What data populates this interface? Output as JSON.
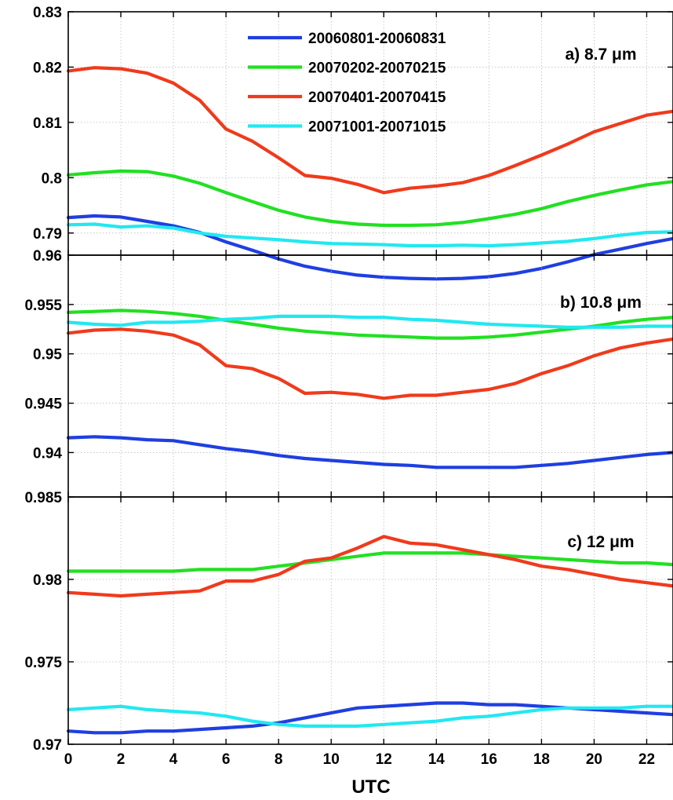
{
  "chart_data": {
    "type": "line",
    "xlabel": "UTC",
    "xlim": [
      0,
      23
    ],
    "xticks": [
      0,
      2,
      4,
      6,
      8,
      10,
      12,
      14,
      16,
      18,
      20,
      22
    ],
    "x": [
      0,
      1,
      2,
      3,
      4,
      5,
      6,
      7,
      8,
      9,
      10,
      11,
      12,
      13,
      14,
      15,
      16,
      17,
      18,
      19,
      20,
      21,
      22,
      23
    ],
    "grid": true,
    "legend": {
      "placement": "top-right (inside panel a)",
      "entries": [
        {
          "name": "20060801-20060831",
          "color": "#1f3fe0"
        },
        {
          "name": "20070202-20070215",
          "color": "#22e022"
        },
        {
          "name": "20070401-20070415",
          "color": "#f03a1c"
        },
        {
          "name": "20071001-20071015",
          "color": "#22e8f0"
        }
      ]
    },
    "panels": [
      {
        "label": "a) 8.7 μm",
        "ylim": [
          0.786,
          0.83
        ],
        "yticks": [
          0.79,
          0.8,
          0.81,
          0.82,
          0.83
        ],
        "ytick_labels": [
          "0.79",
          "0.8",
          "0.81",
          "0.82",
          "0.83"
        ],
        "series": [
          {
            "name": "20060801-20060831",
            "values": [
              0.7928,
              0.7931,
              0.7929,
              0.7921,
              0.7913,
              0.7901,
              0.7884,
              0.7869,
              0.7853,
              0.784,
              0.7831,
              0.7824,
              0.782,
              0.7818,
              0.7817,
              0.7818,
              0.7821,
              0.7827,
              0.7836,
              0.7848,
              0.7861,
              0.7871,
              0.7881,
              0.789
            ]
          },
          {
            "name": "20070202-20070215",
            "values": [
              0.8005,
              0.8009,
              0.8012,
              0.8011,
              0.8003,
              0.799,
              0.7973,
              0.7957,
              0.7941,
              0.7929,
              0.7921,
              0.7916,
              0.7914,
              0.7914,
              0.7915,
              0.7919,
              0.7926,
              0.7934,
              0.7944,
              0.7957,
              0.7968,
              0.7978,
              0.7987,
              0.7993
            ]
          },
          {
            "name": "20070401-20070415",
            "values": [
              0.8193,
              0.8199,
              0.8197,
              0.8189,
              0.8171,
              0.814,
              0.8088,
              0.8066,
              0.8036,
              0.8004,
              0.7999,
              0.7988,
              0.7973,
              0.7981,
              0.7985,
              0.7991,
              0.8004,
              0.8022,
              0.8041,
              0.8061,
              0.8083,
              0.8098,
              0.8113,
              0.812
            ]
          },
          {
            "name": "20071001-20071015",
            "values": [
              0.7915,
              0.7916,
              0.7911,
              0.7913,
              0.7909,
              0.79,
              0.7894,
              0.7891,
              0.7888,
              0.7884,
              0.7881,
              0.788,
              0.7879,
              0.7877,
              0.7877,
              0.7878,
              0.7877,
              0.7879,
              0.7882,
              0.7885,
              0.789,
              0.7896,
              0.7901,
              0.7902
            ]
          }
        ]
      },
      {
        "label": "b) 10.8 μm",
        "ylim": [
          0.9355,
          0.96
        ],
        "yticks": [
          0.94,
          0.945,
          0.95,
          0.955,
          0.96
        ],
        "ytick_labels": [
          "0.94",
          "0.945",
          "0.95",
          "0.955",
          "0.96"
        ],
        "series": [
          {
            "name": "20060801-20060831",
            "values": [
              0.9415,
              0.9416,
              0.9415,
              0.9413,
              0.9412,
              0.9408,
              0.9404,
              0.9401,
              0.9397,
              0.9394,
              0.9392,
              0.939,
              0.9388,
              0.9387,
              0.9385,
              0.9385,
              0.9385,
              0.9385,
              0.9387,
              0.9389,
              0.9392,
              0.9395,
              0.9398,
              0.94
            ]
          },
          {
            "name": "20070202-20070215",
            "values": [
              0.9542,
              0.9543,
              0.9544,
              0.9543,
              0.9541,
              0.9538,
              0.9534,
              0.953,
              0.9526,
              0.9523,
              0.9521,
              0.9519,
              0.9518,
              0.9517,
              0.9516,
              0.9516,
              0.9517,
              0.9519,
              0.9522,
              0.9525,
              0.9528,
              0.9532,
              0.9535,
              0.9537
            ]
          },
          {
            "name": "20070401-20070415",
            "values": [
              0.9521,
              0.9524,
              0.9525,
              0.9523,
              0.9519,
              0.9509,
              0.9488,
              0.9485,
              0.9475,
              0.946,
              0.9461,
              0.9459,
              0.9455,
              0.9458,
              0.9458,
              0.9461,
              0.9464,
              0.947,
              0.948,
              0.9488,
              0.9498,
              0.9506,
              0.9511,
              0.9515
            ]
          },
          {
            "name": "20071001-20071015",
            "values": [
              0.9532,
              0.953,
              0.9529,
              0.9532,
              0.9532,
              0.9533,
              0.9535,
              0.9536,
              0.9538,
              0.9538,
              0.9538,
              0.9537,
              0.9537,
              0.9535,
              0.9534,
              0.9532,
              0.953,
              0.9529,
              0.9528,
              0.9527,
              0.9527,
              0.9527,
              0.9528,
              0.9528
            ]
          }
        ]
      },
      {
        "label": "c) 12 μm",
        "ylim": [
          0.97,
          0.985
        ],
        "yticks": [
          0.97,
          0.975,
          0.98,
          0.985
        ],
        "ytick_labels": [
          "0.97",
          "0.975",
          "0.98",
          "0.985"
        ],
        "series": [
          {
            "name": "20060801-20060831",
            "values": [
              0.9708,
              0.9707,
              0.9707,
              0.9708,
              0.9708,
              0.9709,
              0.971,
              0.9711,
              0.9713,
              0.9716,
              0.9719,
              0.9722,
              0.9723,
              0.9724,
              0.9725,
              0.9725,
              0.9724,
              0.9724,
              0.9723,
              0.9722,
              0.9721,
              0.972,
              0.9719,
              0.9718
            ]
          },
          {
            "name": "20070202-20070215",
            "values": [
              0.9805,
              0.9805,
              0.9805,
              0.9805,
              0.9805,
              0.9806,
              0.9806,
              0.9806,
              0.9808,
              0.981,
              0.9812,
              0.9814,
              0.9816,
              0.9816,
              0.9816,
              0.9816,
              0.9815,
              0.9814,
              0.9813,
              0.9812,
              0.9811,
              0.981,
              0.981,
              0.9809
            ]
          },
          {
            "name": "20070401-20070415",
            "values": [
              0.9792,
              0.9791,
              0.979,
              0.9791,
              0.9792,
              0.9793,
              0.9799,
              0.9799,
              0.9803,
              0.9811,
              0.9813,
              0.9819,
              0.9826,
              0.9822,
              0.9821,
              0.9818,
              0.9815,
              0.9812,
              0.9808,
              0.9806,
              0.9803,
              0.98,
              0.9798,
              0.9796
            ]
          },
          {
            "name": "20071001-20071015",
            "values": [
              0.9721,
              0.9722,
              0.9723,
              0.9721,
              0.972,
              0.9719,
              0.9717,
              0.9714,
              0.9712,
              0.9711,
              0.9711,
              0.9711,
              0.9712,
              0.9713,
              0.9714,
              0.9716,
              0.9717,
              0.9719,
              0.9721,
              0.9722,
              0.9722,
              0.9722,
              0.9723,
              0.9723
            ]
          }
        ]
      }
    ]
  }
}
